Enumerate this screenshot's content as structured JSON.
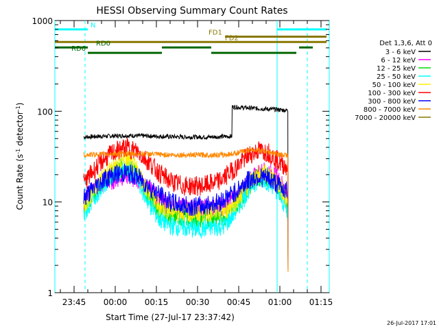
{
  "chart_data": {
    "type": "line",
    "title": "HESSI Observing Summary Count Rates",
    "xlabel": "Start Time (27-Jul-17 23:37:42)",
    "ylabel": "Count Rate (s⁻¹ detector⁻¹)",
    "ylabel_parts": [
      "Count Rate (s",
      "-1",
      " detector",
      "-1",
      ")"
    ],
    "yscale": "log",
    "ylim": [
      1,
      1000
    ],
    "xlim_minutes": [
      -22,
      78
    ],
    "y_ticks": [
      {
        "value": 1,
        "label": "1"
      },
      {
        "value": 10,
        "label": "10"
      },
      {
        "value": 100,
        "label": "100"
      },
      {
        "value": 1000,
        "label": "1000"
      }
    ],
    "x_ticks": [
      {
        "minute": -15,
        "label": "23:45"
      },
      {
        "minute": 0,
        "label": "00:00"
      },
      {
        "minute": 15,
        "label": "00:15"
      },
      {
        "minute": 30,
        "label": "00:30"
      },
      {
        "minute": 45,
        "label": "00:45"
      },
      {
        "minute": 60,
        "label": "01:00"
      },
      {
        "minute": 75,
        "label": "01:15"
      }
    ],
    "legend_header": "Det 1,3,6, Att 0",
    "legend_placement": "right",
    "series": [
      {
        "name": "3 - 6 keV",
        "color": "#000000",
        "points": [
          [
            -11.5,
            52
          ],
          [
            -5,
            53
          ],
          [
            5,
            54
          ],
          [
            15,
            53
          ],
          [
            25,
            52
          ],
          [
            35,
            52
          ],
          [
            42.5,
            53
          ],
          [
            42.6,
            112
          ],
          [
            50,
            108
          ],
          [
            58,
            105
          ],
          [
            63,
            102
          ]
        ]
      },
      {
        "name": "6 - 12 keV",
        "color": "#ff00ff",
        "points": [
          [
            -11.5,
            10
          ],
          [
            -9,
            13
          ],
          [
            -4,
            16
          ],
          [
            0,
            18
          ],
          [
            4,
            20
          ],
          [
            8,
            18
          ],
          [
            12,
            14
          ],
          [
            16,
            10.5
          ],
          [
            20,
            9
          ],
          [
            30,
            8.5
          ],
          [
            40,
            9
          ],
          [
            45,
            12
          ],
          [
            50,
            18
          ],
          [
            54,
            22
          ],
          [
            58,
            20
          ],
          [
            62,
            14
          ],
          [
            63,
            13
          ]
        ]
      },
      {
        "name": "12 - 25 keV",
        "color": "#00dd00",
        "points": [
          [
            -11.5,
            8
          ],
          [
            -9,
            11
          ],
          [
            -4,
            17
          ],
          [
            0,
            22
          ],
          [
            4,
            25
          ],
          [
            8,
            20
          ],
          [
            12,
            12
          ],
          [
            16,
            8
          ],
          [
            20,
            7
          ],
          [
            30,
            6.5
          ],
          [
            40,
            7
          ],
          [
            45,
            10
          ],
          [
            50,
            17
          ],
          [
            54,
            20
          ],
          [
            58,
            17
          ],
          [
            62,
            10
          ],
          [
            63,
            8
          ]
        ]
      },
      {
        "name": "25 - 50 keV",
        "color": "#00ffff",
        "points": [
          [
            -11.5,
            7
          ],
          [
            -9,
            10
          ],
          [
            -4,
            16
          ],
          [
            0,
            21
          ],
          [
            4,
            24
          ],
          [
            8,
            18
          ],
          [
            12,
            10
          ],
          [
            16,
            6.5
          ],
          [
            20,
            5.5
          ],
          [
            30,
            5
          ],
          [
            40,
            5.5
          ],
          [
            45,
            9
          ],
          [
            50,
            16
          ],
          [
            54,
            18
          ],
          [
            58,
            15
          ],
          [
            62,
            9
          ],
          [
            63,
            7
          ]
        ]
      },
      {
        "name": "50 - 100 keV",
        "color": "#ffee00",
        "points": [
          [
            -11.5,
            9
          ],
          [
            -9,
            12
          ],
          [
            -4,
            20
          ],
          [
            0,
            25
          ],
          [
            4,
            30
          ],
          [
            8,
            22
          ],
          [
            12,
            13
          ],
          [
            16,
            9
          ],
          [
            20,
            8
          ],
          [
            30,
            7.5
          ],
          [
            40,
            8
          ],
          [
            45,
            11
          ],
          [
            50,
            18
          ],
          [
            54,
            21
          ],
          [
            58,
            18
          ],
          [
            62,
            12
          ],
          [
            63,
            10
          ]
        ]
      },
      {
        "name": "100 - 300 keV",
        "color": "#ff0000",
        "points": [
          [
            -11.5,
            16
          ],
          [
            -8,
            22
          ],
          [
            -4,
            30
          ],
          [
            0,
            36
          ],
          [
            4,
            40
          ],
          [
            8,
            36
          ],
          [
            12,
            28
          ],
          [
            16,
            21
          ],
          [
            20,
            17
          ],
          [
            25,
            15
          ],
          [
            32,
            15
          ],
          [
            38,
            17
          ],
          [
            44,
            24
          ],
          [
            48,
            32
          ],
          [
            52,
            37
          ],
          [
            56,
            35
          ],
          [
            60,
            27
          ],
          [
            63,
            24
          ]
        ]
      },
      {
        "name": "300 - 800 keV",
        "color": "#0000ff",
        "points": [
          [
            -11.5,
            11
          ],
          [
            -8,
            14
          ],
          [
            -4,
            18
          ],
          [
            0,
            20
          ],
          [
            4,
            21
          ],
          [
            8,
            19
          ],
          [
            12,
            15
          ],
          [
            16,
            12
          ],
          [
            20,
            10
          ],
          [
            25,
            9
          ],
          [
            32,
            9
          ],
          [
            38,
            10
          ],
          [
            44,
            13
          ],
          [
            48,
            17
          ],
          [
            52,
            19
          ],
          [
            56,
            18
          ],
          [
            60,
            15
          ],
          [
            63,
            13
          ]
        ]
      },
      {
        "name": "800 - 7000 keV",
        "color": "#ff8800",
        "points": [
          [
            -11.5,
            33
          ],
          [
            0,
            34
          ],
          [
            10,
            34
          ],
          [
            20,
            33
          ],
          [
            30,
            33
          ],
          [
            40,
            33
          ],
          [
            45,
            35
          ],
          [
            50,
            38
          ],
          [
            55,
            36
          ],
          [
            60,
            33
          ],
          [
            63,
            33
          ]
        ]
      },
      {
        "name": "7000 - 20000 keV",
        "color": "#887700",
        "points": []
      }
    ],
    "saa_lines": [
      {
        "minute": -22,
        "style": "solid",
        "color": "#00ffff"
      },
      {
        "minute": -11,
        "style": "dashed",
        "color": "#00ffff"
      },
      {
        "minute": 59,
        "style": "solid",
        "color": "#00ffff"
      },
      {
        "minute": 70,
        "style": "dashed",
        "color": "#00ffff"
      },
      {
        "minute": 78,
        "style": "solid",
        "color": "#00ffff"
      }
    ],
    "flag_rows": [
      {
        "label": "N",
        "color": "#00ffff",
        "level": 800,
        "label_minute": -9,
        "segments": [
          [
            -22,
            -10
          ],
          [
            59,
            77
          ]
        ]
      },
      {
        "label": "FD1",
        "color": "#887700",
        "level": 665,
        "label_minute": 34,
        "segments": [
          [
            40,
            77
          ]
        ]
      },
      {
        "label": "FD2",
        "color": "#887700",
        "level": 580,
        "label_minute": 40,
        "segments": [
          [
            -22,
            77
          ]
        ]
      },
      {
        "label": "RD0",
        "color": "#006600",
        "level": 505,
        "label_minute": -7,
        "segments": [
          [
            -22,
            -10
          ],
          [
            17,
            35
          ],
          [
            67,
            72
          ]
        ]
      },
      {
        "label": "RD6",
        "color": "#006600",
        "level": 440,
        "label_minute": -16,
        "segments": [
          [
            -10,
            17
          ],
          [
            35,
            66
          ]
        ]
      }
    ]
  },
  "footer": {
    "timestamp": "26-Jul-2017 17:01"
  }
}
